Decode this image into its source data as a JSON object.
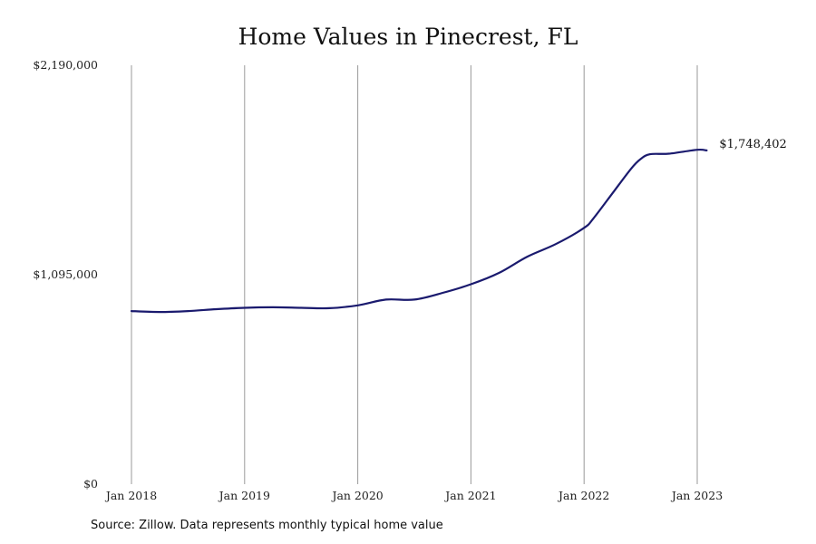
{
  "title": "Home Values in Pinecrest, FL",
  "source": "Source: Zillow. Data represents monthly typical home value",
  "chart_data": {
    "type": "line",
    "title": "Home Values in Pinecrest, FL",
    "xlabel": "",
    "ylabel": "",
    "x_ticks": [
      "Jan 2018",
      "Jan 2019",
      "Jan 2020",
      "Jan 2021",
      "Jan 2022",
      "Jan 2023"
    ],
    "y_ticks": [
      "$0",
      "$1,095,000",
      "$2,190,000"
    ],
    "ylim": [
      0,
      2190000
    ],
    "grid": "vertical lines at each January",
    "line_color": "#1a1a6e",
    "end_label": "$1,748,402",
    "series": [
      {
        "x": [
          "2018-01",
          "2018-04",
          "2018-07",
          "2018-10",
          "2019-01",
          "2019-04",
          "2019-07",
          "2019-10",
          "2020-01",
          "2020-04",
          "2020-07",
          "2020-10",
          "2021-01",
          "2021-04",
          "2021-07",
          "2021-10",
          "2022-01",
          "2022-02",
          "2022-04",
          "2022-06",
          "2022-07",
          "2022-08",
          "2022-10",
          "2023-01",
          "2023-02"
        ],
        "values": [
          905000,
          900000,
          905000,
          915000,
          922000,
          925000,
          922000,
          920000,
          935000,
          965000,
          965000,
          1000000,
          1045000,
          1105000,
          1190000,
          1255000,
          1340000,
          1390000,
          1520000,
          1650000,
          1700000,
          1725000,
          1728000,
          1748402,
          1745000
        ]
      }
    ]
  }
}
